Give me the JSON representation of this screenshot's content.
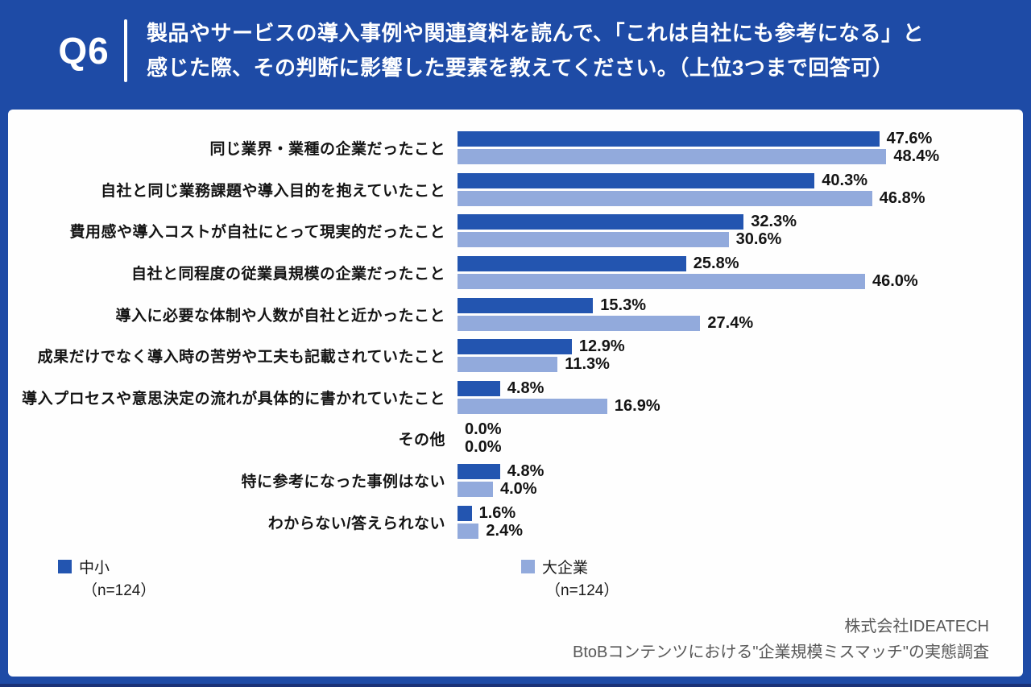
{
  "header": {
    "q_label": "Q6",
    "question_line1": "製品やサービスの導入事例や関連資料を読んで、「これは自社にも参考になる」と",
    "question_line2": "感じた際、その判断に影響した要素を教えてください。（上位3つまで回答可）"
  },
  "chart_data": {
    "type": "bar",
    "orientation": "horizontal",
    "title": "",
    "xlabel": "",
    "ylabel": "",
    "xlim": [
      0,
      50
    ],
    "grid": false,
    "value_suffix": "%",
    "legend_position": "bottom",
    "categories": [
      "同じ業界・業種の企業だったこと",
      "自社と同じ業務課題や導入目的を抱えていたこと",
      "費用感や導入コストが自社にとって現実的だったこと",
      "自社と同程度の従業員規模の企業だったこと",
      "導入に必要な体制や人数が自社と近かったこと",
      "成果だけでなく導入時の苦労や工夫も記載されていたこと",
      "導入プロセスや意思決定の流れが具体的に書かれていたこと",
      "その他",
      "特に参考になった事例はない",
      "わからない/答えられない"
    ],
    "series": [
      {
        "name": "中小",
        "n_label": "（n=124）",
        "color": "#2355b0",
        "values": [
          47.6,
          40.3,
          32.3,
          25.8,
          15.3,
          12.9,
          4.8,
          0.0,
          4.8,
          1.6
        ]
      },
      {
        "name": "大企業",
        "n_label": "（n=124）",
        "color": "#92aadc",
        "values": [
          48.4,
          46.8,
          30.6,
          46.0,
          27.4,
          11.3,
          16.9,
          0.0,
          4.0,
          2.4
        ]
      }
    ]
  },
  "footer": {
    "company": "株式会社IDEATECH",
    "survey": "BtoBコンテンツにおける\"企業規模ミスマッチ\"の実態調査"
  },
  "colors": {
    "background": "#1e4ba6",
    "card": "#fefefe",
    "series_primary": "#2355b0",
    "series_secondary": "#92aadc",
    "text": "#141414",
    "footer_text": "#595959"
  }
}
